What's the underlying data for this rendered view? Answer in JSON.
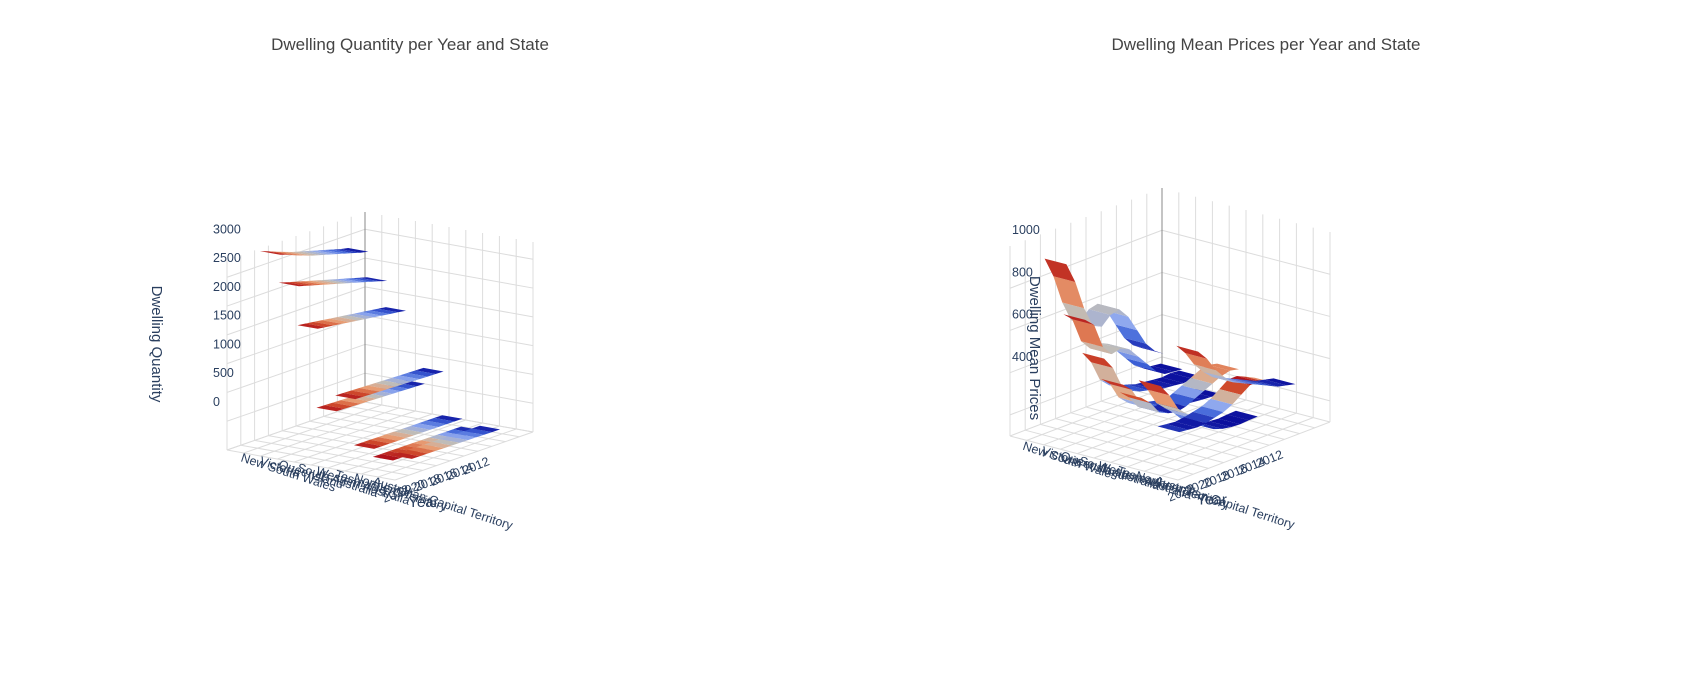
{
  "colors": {
    "scale": [
      "#0a0d9b",
      "#3e63d8",
      "#8fa8ee",
      "#bfbcb8",
      "#e9a37a",
      "#d4532f",
      "#b0121b"
    ],
    "grid": "#dcdcdc",
    "text": "#2a3f5f"
  },
  "chart_data": [
    {
      "type": "3d-ribbon",
      "title": "Dwelling Quantity per Year and State",
      "xlabel": "Year",
      "ylabel": "",
      "zlabel": "Dwelling Quantity",
      "x_ticks": [
        "2012",
        "2014",
        "2016",
        "2018",
        "2020",
        "2022"
      ],
      "y_ticks": [
        "New South Wales",
        "Victoria",
        "Queensland",
        "South Australia",
        "Western Australia",
        "Tasmania",
        "Northern Territory",
        "Australian Capital Territory"
      ],
      "z_ticks": [
        "0",
        "500",
        "1000",
        "1500",
        "2000",
        "2500",
        "3000"
      ],
      "zlim": [
        0,
        3300
      ],
      "x": [
        2011,
        2012,
        2013,
        2014,
        2015,
        2016,
        2017,
        2018,
        2019,
        2020,
        2021,
        2022
      ],
      "series": [
        {
          "name": "New South Wales",
          "values": [
            2850,
            2880,
            2920,
            2960,
            3000,
            3040,
            3080,
            3120,
            3170,
            3220,
            3280,
            3330
          ]
        },
        {
          "name": "Victoria",
          "values": [
            2400,
            2440,
            2480,
            2520,
            2560,
            2600,
            2640,
            2680,
            2720,
            2760,
            2800,
            2840
          ]
        },
        {
          "name": "Queensland",
          "values": [
            1940,
            1960,
            1980,
            2000,
            2020,
            2040,
            2060,
            2080,
            2100,
            2120,
            2140,
            2160
          ]
        },
        {
          "name": "South Australia",
          "values": [
            730,
            735,
            740,
            745,
            750,
            755,
            760,
            765,
            770,
            775,
            780,
            785
          ]
        },
        {
          "name": "Western Australia",
          "values": [
            1000,
            1005,
            1010,
            1015,
            1020,
            1025,
            1030,
            1035,
            1040,
            1045,
            1050,
            1055
          ]
        },
        {
          "name": "Tasmania",
          "values": [
            238,
            239,
            240,
            241,
            242,
            243,
            244,
            245,
            246,
            247,
            248,
            249
          ]
        },
        {
          "name": "Northern Territory",
          "values": [
            98,
            99,
            100,
            101,
            102,
            103,
            104,
            104,
            105,
            105,
            106,
            106
          ]
        },
        {
          "name": "Australian Capital Territory",
          "values": [
            170,
            172,
            174,
            176,
            178,
            180,
            182,
            184,
            186,
            188,
            190,
            192
          ]
        }
      ]
    },
    {
      "type": "3d-ribbon",
      "title": "Dwelling Mean Prices per Year and State",
      "xlabel": "Year",
      "ylabel": "",
      "zlabel": "Dwelling Mean Prices",
      "x_ticks": [
        "2012",
        "2014",
        "2016",
        "2018",
        "2020",
        "2022"
      ],
      "y_ticks": [
        "New South Wales",
        "Victoria",
        "Queensland",
        "South Australia",
        "Western Australia",
        "Tasmania",
        "Northern Territory",
        "Australian Capital Territory"
      ],
      "z_ticks": [
        "400",
        "600",
        "800",
        "1000"
      ],
      "zlim": [
        300,
        1200
      ],
      "x": [
        2011,
        2012,
        2013,
        2014,
        2015,
        2016,
        2017,
        2018,
        2019,
        2020,
        2021,
        2022
      ],
      "series": [
        {
          "name": "New South Wales",
          "values": [
            500,
            530,
            580,
            660,
            740,
            790,
            780,
            740,
            760,
            860,
            1000,
            1100
          ]
        },
        {
          "name": "Victoria",
          "values": [
            450,
            455,
            460,
            490,
            540,
            590,
            640,
            660,
            650,
            700,
            820,
            860
          ]
        },
        {
          "name": "Queensland",
          "values": [
            440,
            445,
            440,
            445,
            450,
            455,
            470,
            480,
            500,
            540,
            640,
            700
          ]
        },
        {
          "name": "South Australia",
          "values": [
            380,
            382,
            385,
            390,
            395,
            400,
            410,
            420,
            440,
            480,
            560,
            600
          ]
        },
        {
          "name": "Western Australia",
          "values": [
            520,
            530,
            520,
            500,
            480,
            460,
            440,
            430,
            440,
            460,
            520,
            560
          ]
        },
        {
          "name": "Tasmania",
          "values": [
            320,
            318,
            315,
            318,
            325,
            340,
            370,
            420,
            460,
            500,
            580,
            640
          ]
        },
        {
          "name": "Northern Territory",
          "values": [
            500,
            520,
            540,
            540,
            510,
            480,
            460,
            450,
            440,
            435,
            440,
            445
          ]
        },
        {
          "name": "Australian Capital Territory",
          "values": [
            520,
            530,
            540,
            560,
            580,
            600,
            620,
            640,
            680,
            730,
            800,
            850
          ]
        }
      ]
    }
  ]
}
